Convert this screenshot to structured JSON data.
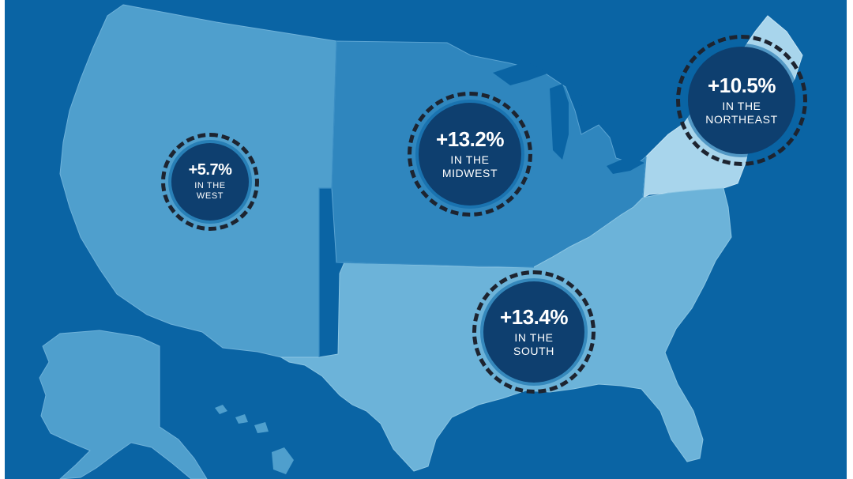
{
  "colors": {
    "ocean": "#0a64a4",
    "west": "#4f9fcd",
    "midwest": "#2f86be",
    "south": "#6cb3d9",
    "northeast": "#a8d5ec",
    "badge_fill": "#0e3f6f",
    "badge_ring": "#1d2430",
    "text": "#ffffff"
  },
  "regions": [
    {
      "id": "west",
      "value": "+5.7%",
      "label_line1": "IN THE",
      "label_line2": "WEST"
    },
    {
      "id": "midwest",
      "value": "+13.2%",
      "label_line1": "IN THE",
      "label_line2": "MIDWEST"
    },
    {
      "id": "northeast",
      "value": "+10.5%",
      "label_line1": "IN THE",
      "label_line2": "NORTHEAST"
    },
    {
      "id": "south",
      "value": "+13.4%",
      "label_line1": "IN THE",
      "label_line2": "SOUTH"
    }
  ]
}
